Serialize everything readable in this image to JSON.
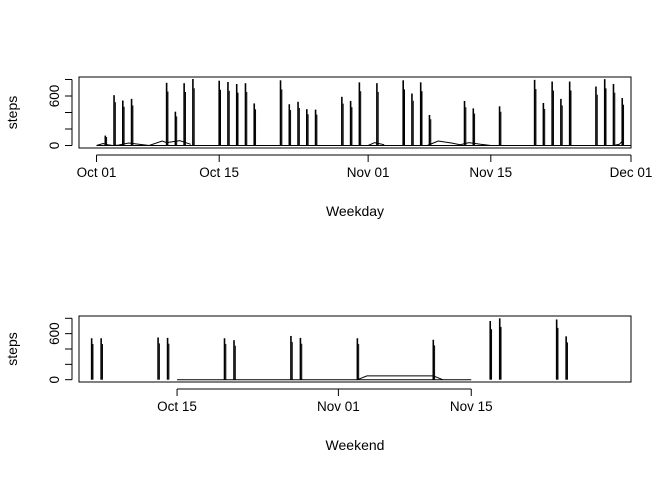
{
  "chart_data": [
    {
      "type": "line",
      "xlabel": "Weekday",
      "ylabel": "steps",
      "x_ticks": [
        {
          "date": "2012-10-01",
          "label": "Oct 01"
        },
        {
          "date": "2012-10-15",
          "label": "Oct 15"
        },
        {
          "date": "2012-11-01",
          "label": "Nov 01"
        },
        {
          "date": "2012-11-15",
          "label": "Nov 15"
        },
        {
          "date": "2012-12-01",
          "label": "Dec 01"
        }
      ],
      "y_ticks": [
        0,
        200,
        400,
        600,
        800
      ],
      "y_tick_labels": [
        "0",
        "",
        "",
        "600",
        ""
      ],
      "xlim": [
        "2012-09-29",
        "2012-12-01"
      ],
      "ylim": [
        -30,
        830
      ],
      "grid": false,
      "baseline_segments": [
        {
          "x": [
            "2012-10-01",
            "2012-10-01T18:00",
            "2012-10-02T06:00",
            "2012-10-02T20:00",
            "2012-10-03T12:00",
            "2012-10-04T16:00",
            "2012-10-05T20:00",
            "2012-10-07",
            "2012-10-08T12:00",
            "2012-10-09",
            "2012-10-10T12:00",
            "2012-10-11T18:00"
          ],
          "y": [
            0,
            25,
            10,
            0,
            5,
            30,
            15,
            0,
            55,
            35,
            60,
            15
          ]
        },
        {
          "x": [
            "2012-11-01",
            "2012-11-01T18:00",
            "2012-11-02T20:00"
          ],
          "y": [
            0,
            35,
            10
          ]
        },
        {
          "x": [
            "2012-11-07T18:00",
            "2012-11-09",
            "2012-11-10T12:00",
            "2012-11-11T12:00",
            "2012-11-12T12:00",
            "2012-11-13T20:00",
            "2012-11-15"
          ],
          "y": [
            0,
            55,
            30,
            10,
            35,
            15,
            0
          ]
        },
        {
          "x": [
            "2012-11-29",
            "2012-11-29T16:00",
            "2012-11-30"
          ],
          "y": [
            0,
            15,
            50
          ]
        }
      ],
      "spikes": [
        {
          "x": "2012-10-02",
          "y": 120
        },
        {
          "x": "2012-10-03",
          "y": 610
        },
        {
          "x": "2012-10-04",
          "y": 545
        },
        {
          "x": "2012-10-05",
          "y": 565
        },
        {
          "x": "2012-10-09",
          "y": 760
        },
        {
          "x": "2012-10-10",
          "y": 410
        },
        {
          "x": "2012-10-11",
          "y": 755
        },
        {
          "x": "2012-10-12",
          "y": 806
        },
        {
          "x": "2012-10-15",
          "y": 785
        },
        {
          "x": "2012-10-16",
          "y": 770
        },
        {
          "x": "2012-10-17",
          "y": 745
        },
        {
          "x": "2012-10-18",
          "y": 755
        },
        {
          "x": "2012-10-19",
          "y": 510
        },
        {
          "x": "2012-10-22",
          "y": 790
        },
        {
          "x": "2012-10-23",
          "y": 500
        },
        {
          "x": "2012-10-24",
          "y": 530
        },
        {
          "x": "2012-10-25",
          "y": 440
        },
        {
          "x": "2012-10-26",
          "y": 435
        },
        {
          "x": "2012-10-29",
          "y": 590
        },
        {
          "x": "2012-10-30",
          "y": 540
        },
        {
          "x": "2012-10-31",
          "y": 765
        },
        {
          "x": "2012-11-02",
          "y": 755
        },
        {
          "x": "2012-11-05",
          "y": 790
        },
        {
          "x": "2012-11-06",
          "y": 630
        },
        {
          "x": "2012-11-07",
          "y": 765
        },
        {
          "x": "2012-11-08",
          "y": 370
        },
        {
          "x": "2012-11-12",
          "y": 540
        },
        {
          "x": "2012-11-13",
          "y": 450
        },
        {
          "x": "2012-11-16",
          "y": 475
        },
        {
          "x": "2012-11-20",
          "y": 795
        },
        {
          "x": "2012-11-21",
          "y": 515
        },
        {
          "x": "2012-11-22",
          "y": 775
        },
        {
          "x": "2012-11-23",
          "y": 565
        },
        {
          "x": "2012-11-24",
          "y": 775
        },
        {
          "x": "2012-11-27",
          "y": 715
        },
        {
          "x": "2012-11-28",
          "y": 805
        },
        {
          "x": "2012-11-29",
          "y": 745
        },
        {
          "x": "2012-11-30",
          "y": 575
        }
      ]
    },
    {
      "type": "line",
      "xlabel": "Weekend",
      "ylabel": "steps",
      "x_ticks": [
        {
          "date": "2012-10-15",
          "label": "Oct 15"
        },
        {
          "date": "2012-11-01",
          "label": "Nov 01"
        },
        {
          "date": "2012-11-15",
          "label": "Nov 15"
        }
      ],
      "y_ticks": [
        0,
        200,
        400,
        600,
        800
      ],
      "y_tick_labels": [
        "0",
        "",
        "",
        "600",
        ""
      ],
      "xlim": [
        "2012-10-04T16:00",
        "2012-12-01T20:00"
      ],
      "ylim": [
        -30,
        830
      ],
      "grid": false,
      "baseline_segments": [
        {
          "x": [
            "2012-11-03",
            "2012-11-04",
            "2012-11-11",
            "2012-11-12"
          ],
          "y": [
            0,
            50,
            50,
            0
          ]
        }
      ],
      "spikes": [
        {
          "x": "2012-10-06",
          "y": 540
        },
        {
          "x": "2012-10-07",
          "y": 540
        },
        {
          "x": "2012-10-13",
          "y": 550
        },
        {
          "x": "2012-10-14",
          "y": 545
        },
        {
          "x": "2012-10-20",
          "y": 540
        },
        {
          "x": "2012-10-21",
          "y": 515
        },
        {
          "x": "2012-10-27",
          "y": 570
        },
        {
          "x": "2012-10-28",
          "y": 545
        },
        {
          "x": "2012-11-03",
          "y": 540
        },
        {
          "x": "2012-11-11",
          "y": 520
        },
        {
          "x": "2012-11-17",
          "y": 765
        },
        {
          "x": "2012-11-18",
          "y": 800
        },
        {
          "x": "2012-11-24",
          "y": 785
        },
        {
          "x": "2012-11-25",
          "y": 565
        }
      ]
    }
  ]
}
